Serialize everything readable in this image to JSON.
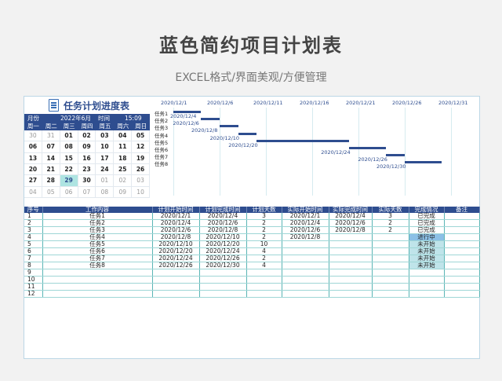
{
  "header": {
    "title": "蓝色简约项目计划表",
    "subtitle": "EXCEL格式/界面美观/方便管理"
  },
  "plan_title": "任务计划进度表",
  "calendar": {
    "month_label": "月份",
    "month_value": "2022年6月",
    "time_label": "时间",
    "time_value": "15:09",
    "weekdays": [
      "周一",
      "周二",
      "周三",
      "周四",
      "周五",
      "周六",
      "周日"
    ],
    "days": [
      "30",
      "31",
      "01",
      "02",
      "03",
      "04",
      "05",
      "06",
      "07",
      "08",
      "09",
      "10",
      "11",
      "12",
      "13",
      "14",
      "15",
      "16",
      "17",
      "18",
      "19",
      "20",
      "21",
      "22",
      "23",
      "24",
      "25",
      "26",
      "27",
      "28",
      "29",
      "30",
      "01",
      "02",
      "03",
      "04",
      "05",
      "06",
      "07",
      "08",
      "09",
      "10"
    ],
    "today": "29"
  },
  "gantt": {
    "axis_dates": [
      "2020/12/1",
      "2020/12/6",
      "2020/12/11",
      "2020/12/16",
      "2020/12/21",
      "2020/12/26",
      "2020/12/31"
    ],
    "tasks": [
      {
        "name": "任务1",
        "start": "2020/12/1",
        "end": "2020/12/4"
      },
      {
        "name": "任务2",
        "start": "2020/12/4",
        "end": "2020/12/6"
      },
      {
        "name": "任务3",
        "start": "2020/12/6",
        "end": "2020/12/8"
      },
      {
        "name": "任务4",
        "start": "2020/12/8",
        "end": "2020/12/10"
      },
      {
        "name": "任务5",
        "start": "2020/12/10",
        "end": "2020/12/20"
      },
      {
        "name": "任务6",
        "start": "2020/12/20",
        "end": "2020/12/24"
      },
      {
        "name": "任务7",
        "start": "2020/12/24",
        "end": "2020/12/26"
      },
      {
        "name": "任务8",
        "start": "2020/12/26",
        "end": "2020/12/30"
      }
    ]
  },
  "table": {
    "columns": [
      "序号",
      "工作内容",
      "计划开始时间",
      "计划完成时间",
      "计划天数",
      "实际开始时间",
      "实际完成时间",
      "实际天数",
      "完成情况",
      "备注"
    ],
    "rows": [
      [
        "1",
        "任务1",
        "2020/12/1",
        "2020/12/4",
        "3",
        "2020/12/1",
        "2020/12/4",
        "3",
        "已完成",
        ""
      ],
      [
        "2",
        "任务2",
        "2020/12/4",
        "2020/12/6",
        "2",
        "2020/12/4",
        "2020/12/6",
        "2",
        "已完成",
        ""
      ],
      [
        "3",
        "任务3",
        "2020/12/6",
        "2020/12/8",
        "2",
        "2020/12/6",
        "2020/12/8",
        "2",
        "已完成",
        ""
      ],
      [
        "4",
        "任务4",
        "2020/12/8",
        "2020/12/10",
        "2",
        "2020/12/8",
        "",
        "",
        "进行中",
        ""
      ],
      [
        "5",
        "任务5",
        "2020/12/10",
        "2020/12/20",
        "10",
        "",
        "",
        "",
        "未开始",
        ""
      ],
      [
        "6",
        "任务6",
        "2020/12/20",
        "2020/12/24",
        "4",
        "",
        "",
        "",
        "未开始",
        ""
      ],
      [
        "7",
        "任务7",
        "2020/12/24",
        "2020/12/26",
        "2",
        "",
        "",
        "",
        "未开始",
        ""
      ],
      [
        "8",
        "任务8",
        "2020/12/26",
        "2020/12/30",
        "4",
        "",
        "",
        "",
        "未开始",
        ""
      ],
      [
        "9",
        "",
        "",
        "",
        "",
        "",
        "",
        "",
        "",
        ""
      ],
      [
        "10",
        "",
        "",
        "",
        "",
        "",
        "",
        "",
        "",
        ""
      ],
      [
        "11",
        "",
        "",
        "",
        "",
        "",
        "",
        "",
        "",
        ""
      ],
      [
        "12",
        "",
        "",
        "",
        "",
        "",
        "",
        "",
        "",
        ""
      ]
    ]
  },
  "colors": {
    "accent": "#2e4d8f",
    "grid": "#5ab5b5",
    "in_progress": "#8cc0e6",
    "not_started": "#bfe4ea",
    "today": "#aee4e2"
  }
}
